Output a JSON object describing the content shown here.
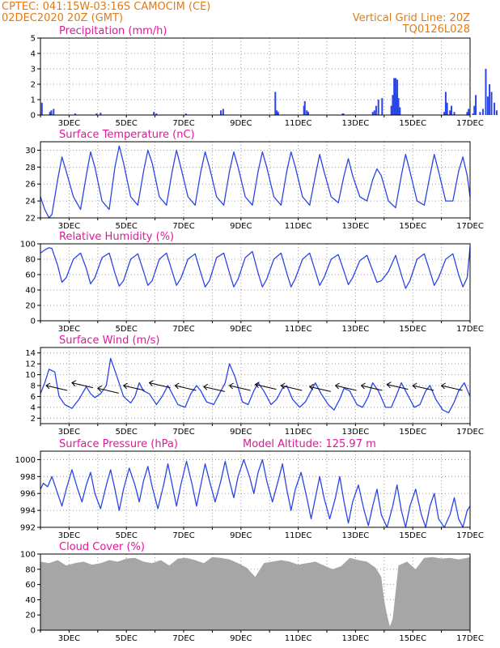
{
  "header": {
    "left_line1": "CPTEC:   041:15W-03:16S   CAMOCIM (CE)",
    "left_line2": "02DEC2020 20Z (GMT)",
    "right_line1": "Vertical Grid Line: 20Z",
    "right_line2": "TQ0126L028"
  },
  "colors": {
    "header": "#e07a18",
    "title": "#e0179a",
    "line": "#2a45e8",
    "bar": "#2a45e8",
    "wind_arrow": "#000000",
    "cloud": "#a6a6a6",
    "grid": "#9a9a9a"
  },
  "x_axis": {
    "start": "02DEC2020 20Z",
    "end": "17DEC2020 20Z",
    "tick_labels": [
      "3DEC",
      "5DEC",
      "7DEC",
      "9DEC",
      "11DEC",
      "13DEC",
      "15DEC",
      "17DEC"
    ]
  },
  "chart_data": [
    {
      "id": "precip",
      "type": "bar",
      "title": "Precipitation (mm/h)",
      "ylim": [
        0,
        5
      ],
      "yticks": [
        0,
        1,
        2,
        3,
        4,
        5
      ],
      "x_day": [
        0.05,
        0.33,
        0.38,
        0.46,
        1.21,
        1.96,
        2.1,
        3.96,
        4.05,
        5.08,
        6.3,
        6.38,
        8.2,
        8.25,
        8.3,
        9.2,
        9.23,
        9.3,
        9.35,
        10.55,
        10.58,
        11.6,
        11.66,
        11.72,
        11.8,
        11.93,
        12.25,
        12.3,
        12.35,
        12.4,
        12.43,
        12.46,
        12.5,
        12.55,
        14.1,
        14.15,
        14.2,
        14.3,
        14.35,
        14.45,
        14.9,
        14.95,
        15.1,
        15.15,
        15.2,
        15.35,
        15.45,
        15.55,
        15.62,
        15.68,
        15.75,
        15.85,
        15.93
      ],
      "values": [
        0.8,
        0.2,
        0.3,
        0.4,
        0.1,
        0.1,
        0.15,
        0.2,
        0.1,
        0.1,
        0.3,
        0.4,
        1.5,
        0.3,
        0.2,
        0.6,
        0.9,
        0.3,
        0.2,
        0.1,
        0.1,
        0.2,
        0.3,
        0.6,
        1.0,
        1.1,
        0.6,
        1.3,
        2.4,
        2.4,
        1.3,
        2.3,
        1.1,
        0.5,
        0.2,
        1.5,
        0.8,
        0.3,
        0.6,
        0.2,
        0.2,
        0.4,
        0.1,
        0.6,
        1.3,
        0.2,
        0.4,
        3.0,
        1.2,
        2.0,
        1.5,
        0.8,
        0.3
      ]
    },
    {
      "id": "temp",
      "type": "line",
      "title": "Surface Temperature (nC)",
      "ylim": [
        22,
        31
      ],
      "yticks": [
        22,
        24,
        26,
        28,
        30
      ],
      "x_day": [
        0,
        0.15,
        0.3,
        0.4,
        0.6,
        0.75,
        0.9,
        1.15,
        1.4,
        1.6,
        1.75,
        1.9,
        2.15,
        2.4,
        2.6,
        2.75,
        2.9,
        3.15,
        3.4,
        3.6,
        3.75,
        3.9,
        4.15,
        4.4,
        4.6,
        4.75,
        4.9,
        5.15,
        5.4,
        5.6,
        5.75,
        5.9,
        6.15,
        6.4,
        6.6,
        6.75,
        6.9,
        7.15,
        7.4,
        7.6,
        7.75,
        7.9,
        8.15,
        8.4,
        8.6,
        8.75,
        8.9,
        9.15,
        9.4,
        9.6,
        9.75,
        9.9,
        10.15,
        10.4,
        10.6,
        10.75,
        10.9,
        11.15,
        11.4,
        11.6,
        11.75,
        11.9,
        12.15,
        12.4,
        12.6,
        12.75,
        12.9,
        13.15,
        13.4,
        13.6,
        13.75,
        13.9,
        14.15,
        14.4,
        14.6,
        14.75,
        14.9,
        15.0
      ],
      "values": [
        24.5,
        23.0,
        22.0,
        22.4,
        26.5,
        29.2,
        27.5,
        24.5,
        23.0,
        27.0,
        29.8,
        28.0,
        24.0,
        23.0,
        28.0,
        30.5,
        28.5,
        24.5,
        23.5,
        27.5,
        30.0,
        28.5,
        24.5,
        23.5,
        27.5,
        30.0,
        28.0,
        24.5,
        23.5,
        27.5,
        29.8,
        28.0,
        24.5,
        23.5,
        27.5,
        29.8,
        28.0,
        24.5,
        23.5,
        27.5,
        29.8,
        28.0,
        24.5,
        23.5,
        27.5,
        29.8,
        28.0,
        24.5,
        23.5,
        27.0,
        29.5,
        27.5,
        24.5,
        23.8,
        27.0,
        29.0,
        27.0,
        24.5,
        24.0,
        26.5,
        27.8,
        27.0,
        24.0,
        23.2,
        27.0,
        29.5,
        27.5,
        24.0,
        23.5,
        27.0,
        29.5,
        27.5,
        24.0,
        24.0,
        27.5,
        29.2,
        27.0,
        24.5
      ]
    },
    {
      "id": "rh",
      "type": "line",
      "title": "Relative Humidity (%)",
      "ylim": [
        0,
        100
      ],
      "yticks": [
        0,
        20,
        40,
        60,
        80,
        100
      ],
      "x_day": [
        0,
        0.15,
        0.3,
        0.4,
        0.6,
        0.75,
        0.9,
        1.15,
        1.4,
        1.6,
        1.75,
        1.9,
        2.15,
        2.4,
        2.6,
        2.75,
        2.9,
        3.15,
        3.4,
        3.6,
        3.75,
        3.9,
        4.15,
        4.4,
        4.6,
        4.75,
        4.9,
        5.15,
        5.4,
        5.6,
        5.75,
        5.9,
        6.15,
        6.4,
        6.6,
        6.75,
        6.9,
        7.15,
        7.4,
        7.6,
        7.75,
        7.9,
        8.15,
        8.4,
        8.6,
        8.75,
        8.9,
        9.15,
        9.4,
        9.6,
        9.75,
        9.9,
        10.15,
        10.4,
        10.6,
        10.75,
        10.9,
        11.15,
        11.4,
        11.6,
        11.75,
        11.9,
        12.15,
        12.4,
        12.6,
        12.75,
        12.9,
        13.15,
        13.4,
        13.6,
        13.75,
        13.9,
        14.15,
        14.4,
        14.6,
        14.75,
        14.9,
        15.0
      ],
      "values": [
        88,
        92,
        95,
        94,
        72,
        50,
        56,
        80,
        88,
        68,
        48,
        56,
        82,
        88,
        62,
        45,
        52,
        80,
        87,
        64,
        46,
        52,
        80,
        88,
        64,
        46,
        55,
        80,
        87,
        62,
        44,
        52,
        82,
        88,
        62,
        44,
        54,
        82,
        90,
        62,
        44,
        54,
        80,
        88,
        62,
        44,
        55,
        80,
        88,
        64,
        46,
        56,
        80,
        86,
        64,
        47,
        56,
        78,
        85,
        65,
        50,
        52,
        64,
        85,
        60,
        42,
        52,
        80,
        87,
        64,
        46,
        56,
        80,
        87,
        60,
        44,
        56,
        96
      ]
    },
    {
      "id": "wind",
      "type": "line",
      "title": "Surface Wind (m/s)",
      "ylim": [
        1,
        15
      ],
      "yticks": [
        2,
        4,
        6,
        8,
        10,
        12,
        14
      ],
      "x_day": [
        0,
        0.15,
        0.3,
        0.5,
        0.65,
        0.85,
        1.1,
        1.35,
        1.6,
        1.75,
        1.9,
        2.1,
        2.3,
        2.45,
        2.65,
        2.9,
        3.15,
        3.3,
        3.45,
        3.6,
        3.8,
        4.05,
        4.25,
        4.45,
        4.6,
        4.8,
        5.05,
        5.25,
        5.45,
        5.6,
        5.8,
        6.05,
        6.25,
        6.45,
        6.6,
        6.8,
        7.05,
        7.25,
        7.45,
        7.6,
        7.8,
        8.05,
        8.25,
        8.45,
        8.6,
        8.8,
        9.05,
        9.25,
        9.45,
        9.6,
        9.8,
        10.05,
        10.25,
        10.45,
        10.6,
        10.8,
        11.05,
        11.25,
        11.45,
        11.6,
        11.8,
        12.05,
        12.25,
        12.45,
        12.6,
        12.8,
        13.05,
        13.25,
        13.45,
        13.6,
        13.8,
        14.05,
        14.25,
        14.45,
        14.6,
        14.8,
        15.0
      ],
      "values": [
        6.5,
        8.5,
        11.0,
        10.5,
        6.0,
        4.5,
        3.8,
        5.5,
        7.8,
        6.5,
        5.8,
        6.5,
        8.0,
        13.0,
        10.0,
        6.0,
        4.8,
        6.0,
        8.5,
        7.0,
        6.5,
        4.5,
        6.0,
        8.0,
        6.5,
        4.5,
        4.0,
        6.5,
        8.0,
        7.0,
        5.0,
        4.5,
        6.5,
        8.5,
        12.0,
        9.5,
        5.0,
        4.5,
        7.0,
        8.5,
        7.0,
        4.5,
        5.5,
        7.5,
        8.0,
        5.5,
        4.0,
        5.0,
        7.0,
        8.5,
        6.5,
        4.5,
        3.5,
        5.5,
        7.5,
        7.0,
        4.5,
        4.0,
        6.0,
        8.5,
        7.0,
        4.0,
        4.0,
        6.5,
        8.5,
        6.5,
        4.0,
        4.5,
        7.0,
        8.0,
        5.5,
        3.5,
        3.0,
        5.0,
        7.0,
        8.5,
        6.0
      ],
      "arrows_x_day": [
        0.2,
        1.1,
        2.0,
        2.9,
        3.8,
        4.7,
        5.7,
        6.6,
        7.5,
        8.4,
        9.4,
        10.3,
        11.2,
        12.1,
        13.0,
        14.0
      ],
      "arrows_speed": [
        8.0,
        8.5,
        7.5,
        8.0,
        8.5,
        8.0,
        7.8,
        8.0,
        8.2,
        8.0,
        7.8,
        8.0,
        8.0,
        8.2,
        8.0,
        8.0
      ]
    },
    {
      "id": "press",
      "type": "line",
      "title": "Surface Pressure (hPa)",
      "annotation": "Model Altitude: 125.97 m",
      "ylim": [
        992,
        1001
      ],
      "yticks": [
        992,
        994,
        996,
        998,
        1000
      ],
      "x_day": [
        0,
        0.1,
        0.25,
        0.4,
        0.6,
        0.75,
        0.9,
        1.1,
        1.3,
        1.45,
        1.6,
        1.75,
        1.9,
        2.1,
        2.3,
        2.45,
        2.6,
        2.75,
        2.9,
        3.1,
        3.3,
        3.45,
        3.6,
        3.75,
        3.9,
        4.1,
        4.3,
        4.45,
        4.6,
        4.75,
        4.9,
        5.1,
        5.3,
        5.45,
        5.6,
        5.75,
        5.9,
        6.1,
        6.3,
        6.45,
        6.6,
        6.75,
        6.9,
        7.1,
        7.3,
        7.45,
        7.6,
        7.75,
        7.9,
        8.1,
        8.3,
        8.45,
        8.6,
        8.75,
        8.9,
        9.1,
        9.3,
        9.45,
        9.6,
        9.75,
        9.9,
        10.1,
        10.3,
        10.45,
        10.6,
        10.75,
        10.9,
        11.1,
        11.3,
        11.45,
        11.6,
        11.75,
        11.9,
        12.1,
        12.3,
        12.45,
        12.6,
        12.75,
        12.9,
        13.1,
        13.3,
        13.45,
        13.6,
        13.75,
        13.9,
        14.1,
        14.3,
        14.45,
        14.6,
        14.75,
        14.9,
        15.0
      ],
      "values": [
        996.5,
        997.2,
        996.8,
        998.0,
        996.0,
        994.5,
        996.5,
        998.8,
        996.5,
        995.0,
        997.0,
        998.5,
        996.0,
        994.2,
        997.0,
        998.8,
        996.5,
        994.0,
        996.5,
        999.0,
        997.0,
        995.0,
        997.5,
        999.2,
        996.8,
        994.2,
        997.0,
        999.5,
        997.0,
        994.5,
        997.0,
        999.8,
        997.0,
        994.5,
        997.0,
        999.5,
        997.5,
        995.0,
        997.5,
        999.8,
        997.5,
        995.5,
        998.0,
        1000.0,
        998.0,
        996.0,
        998.5,
        1000.0,
        997.5,
        995.0,
        997.5,
        999.5,
        996.5,
        994.0,
        996.5,
        998.5,
        995.5,
        993.0,
        995.5,
        998.0,
        995.5,
        993.0,
        995.5,
        998.0,
        995.0,
        992.5,
        995.0,
        997.0,
        994.0,
        992.2,
        994.5,
        996.5,
        993.5,
        992.0,
        994.5,
        997.0,
        994.0,
        992.0,
        994.5,
        996.5,
        993.5,
        992.0,
        994.5,
        996.0,
        993.0,
        992.0,
        993.5,
        995.5,
        993.0,
        992.0,
        994.0,
        994.5
      ]
    },
    {
      "id": "cloud",
      "type": "area",
      "title": "Cloud Cover (%)",
      "ylim": [
        0,
        100
      ],
      "yticks": [
        0,
        20,
        40,
        60,
        80,
        100
      ],
      "x_day": [
        0,
        0.3,
        0.6,
        0.9,
        1.2,
        1.5,
        1.8,
        2.1,
        2.4,
        2.7,
        3.0,
        3.3,
        3.6,
        3.9,
        4.2,
        4.5,
        4.8,
        5.1,
        5.4,
        5.7,
        6.0,
        6.3,
        6.6,
        6.9,
        7.2,
        7.5,
        7.8,
        8.1,
        8.4,
        8.7,
        9.0,
        9.3,
        9.6,
        9.9,
        10.2,
        10.5,
        10.8,
        11.1,
        11.4,
        11.7,
        11.9,
        12.0,
        12.1,
        12.2,
        12.3,
        12.5,
        12.8,
        13.1,
        13.4,
        13.7,
        14.0,
        14.3,
        14.6,
        14.9,
        15.0
      ],
      "values": [
        90,
        88,
        92,
        85,
        88,
        90,
        86,
        88,
        92,
        90,
        94,
        95,
        90,
        88,
        92,
        85,
        94,
        95,
        92,
        88,
        96,
        95,
        93,
        88,
        82,
        70,
        88,
        90,
        92,
        90,
        86,
        88,
        90,
        85,
        80,
        84,
        95,
        92,
        90,
        82,
        70,
        40,
        20,
        5,
        15,
        85,
        90,
        80,
        95,
        96,
        94,
        95,
        93,
        95,
        96
      ]
    }
  ]
}
